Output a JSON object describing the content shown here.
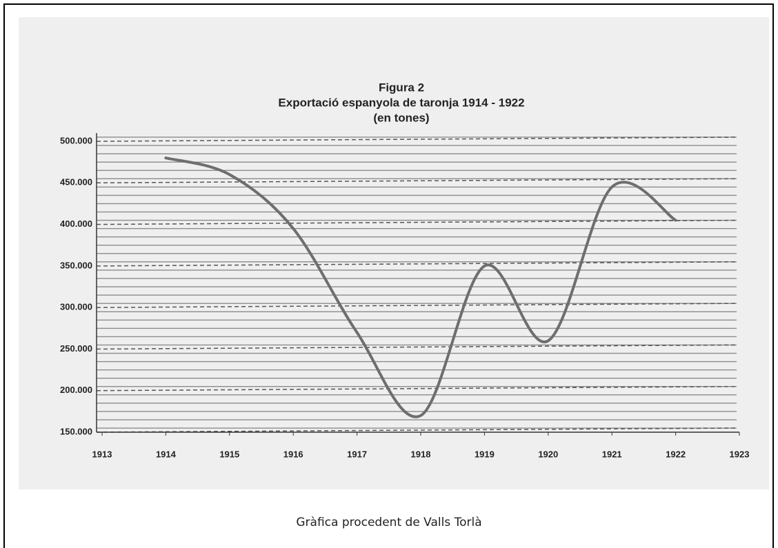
{
  "chart_data": {
    "type": "line",
    "title": "Figura 2",
    "subtitle": "Exportació espanyola de taronja 1914 - 1922",
    "unit_label": "(en tones)",
    "x": [
      1914,
      1915,
      1916,
      1917,
      1918,
      1919,
      1920,
      1921,
      1922
    ],
    "series": [
      {
        "name": "Exportació",
        "color": "#6e6e6e",
        "values": [
          480000,
          460000,
          395000,
          270000,
          170000,
          350000,
          260000,
          445000,
          405000
        ]
      }
    ],
    "xlim": [
      1913,
      1923
    ],
    "xticks": [
      1913,
      1914,
      1915,
      1916,
      1917,
      1918,
      1919,
      1920,
      1921,
      1922,
      1923
    ],
    "ylim": [
      150000,
      500000
    ],
    "yticks": [
      {
        "value": 150000,
        "label": "150.000"
      },
      {
        "value": 200000,
        "label": "200.000"
      },
      {
        "value": 250000,
        "label": "250.000"
      },
      {
        "value": 300000,
        "label": "300.000"
      },
      {
        "value": 350000,
        "label": "350.000"
      },
      {
        "value": 400000,
        "label": "400.000"
      },
      {
        "value": 450000,
        "label": "450.000"
      },
      {
        "value": 500000,
        "label": "500.000"
      }
    ],
    "grid": true
  },
  "caption": "Gràfica procedent de Valls Torlà"
}
